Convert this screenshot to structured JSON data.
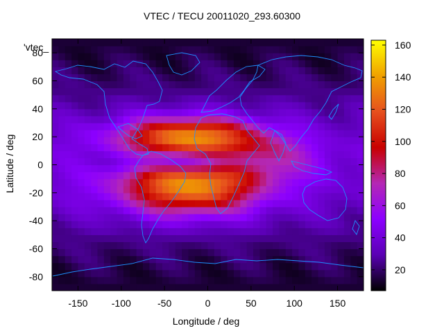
{
  "chart_data": {
    "type": "heatmap",
    "title": "VTEC / TECU 20011020_293.60300",
    "xlabel": "Longitude / deg",
    "ylabel": "Latitude / deg",
    "key_label": "'vtec_",
    "xlim": [
      -180,
      180
    ],
    "ylim": [
      -90,
      90
    ],
    "xticks": [
      -150,
      -100,
      -50,
      0,
      50,
      100,
      150
    ],
    "yticks": [
      -80,
      -60,
      -40,
      -20,
      0,
      20,
      40,
      60,
      80
    ],
    "colorbar": {
      "range": [
        7,
        163
      ],
      "ticks": [
        20,
        40,
        60,
        80,
        100,
        120,
        140,
        160
      ],
      "palette": [
        "#000000",
        "#5a00b4",
        "#8c00ff",
        "#b428b4",
        "#c80000",
        "#e6501e",
        "#f0a000",
        "#ffff00"
      ]
    },
    "features": {
      "equatorial_anomaly_crest_peak_vtec": 140,
      "crest_latitudes": [
        20,
        -15
      ],
      "subsolar_longitude": -20,
      "background_min_vtec": 10,
      "midlatitude_vtec": 40
    }
  }
}
